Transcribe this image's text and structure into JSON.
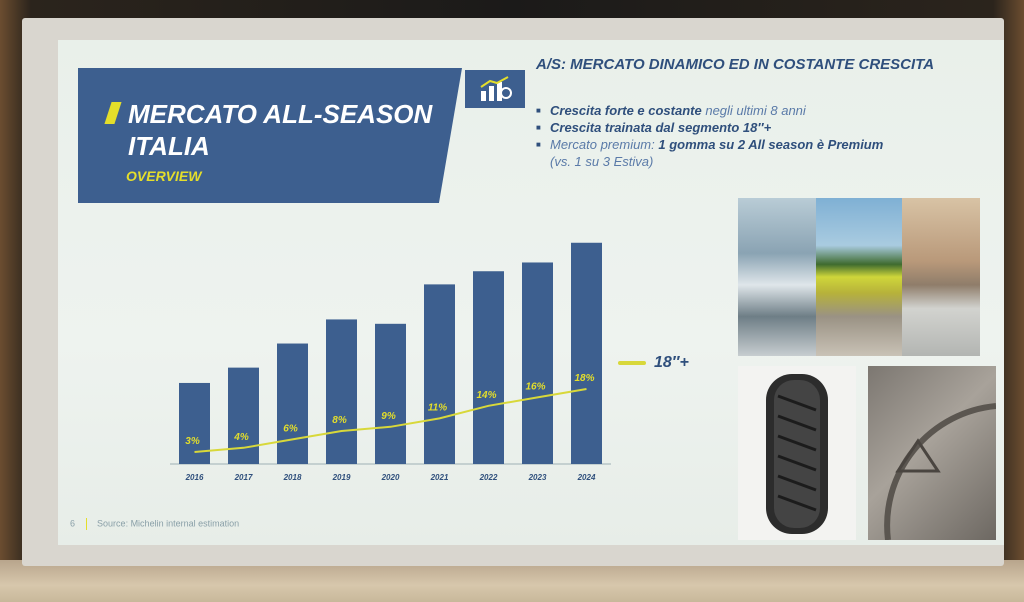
{
  "slide": {
    "title_line1": "MERCATO ALL-SEASON",
    "title_line2": "ITALIA",
    "subtitle": "OVERVIEW",
    "headline": "A/S: MERCATO DINAMICO ED IN COSTANTE CRESCITA",
    "bullets": [
      {
        "strong": "Crescita forte e costante",
        "dim": " negli ultimi 8 anni"
      },
      {
        "strong": "Crescita trainata dal segmento 18″+",
        "dim": ""
      },
      {
        "dim": "Mercato premium:  ",
        "strong": "1 gomma su 2 All season è Premium"
      }
    ],
    "bullet_note": "(vs. 1 su 3 Estiva)",
    "page_number": "6",
    "source": "Source: Michelin internal estimation",
    "icon": "market-growth-icon"
  },
  "chart_data": {
    "type": "bar",
    "categories": [
      "2016",
      "2017",
      "2018",
      "2019",
      "2020",
      "2021",
      "2022",
      "2023",
      "2024"
    ],
    "series": [
      {
        "name": "",
        "values": [
          37,
          44,
          55,
          66,
          64,
          82,
          88,
          92,
          101
        ],
        "color": "#3d5f8f"
      },
      {
        "name": "18″+",
        "type": "line",
        "values": [
          3,
          4,
          6,
          8,
          9,
          11,
          14,
          16,
          18
        ],
        "labels": [
          "3%",
          "4%",
          "6%",
          "8%",
          "9%",
          "11%",
          "14%",
          "16%",
          "18%"
        ],
        "color": "#d8d83a"
      }
    ],
    "legend_label": "18″+",
    "ylim": [
      0,
      105
    ]
  },
  "photos": [
    "mountain-winter-photo",
    "spring-field-photo",
    "city-building-photo",
    "tire-tread-photo",
    "tire-3pmsf-marking-photo"
  ]
}
